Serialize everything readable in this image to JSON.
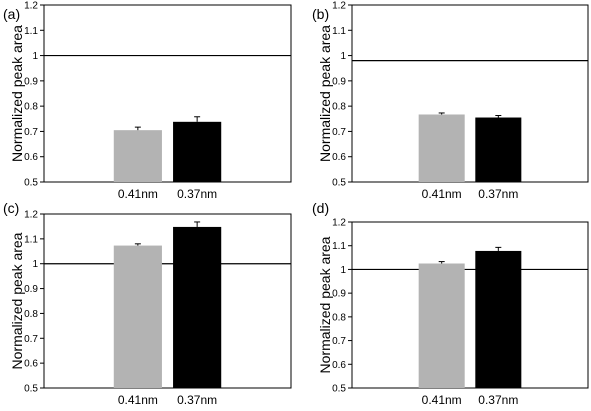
{
  "chart_data": [
    {
      "type": "bar",
      "panel_label": "(a)",
      "ylabel": "Normalized peak area",
      "ylim": [
        0.5,
        1.2
      ],
      "yticks": [
        "0.5",
        "0.6",
        "0.7",
        "0.8",
        "0.9",
        "1",
        "1.1",
        "1.2"
      ],
      "categories": [
        "0.41nm",
        "0.37nm"
      ],
      "values": [
        0.705,
        0.738
      ],
      "errors": [
        0.012,
        0.02
      ],
      "bar_colors": [
        "#b3b3b3",
        "#000000"
      ],
      "reference_line": 1.0
    },
    {
      "type": "bar",
      "panel_label": "(b)",
      "ylabel": "Normalized peak area",
      "ylim": [
        0.5,
        1.2
      ],
      "yticks": [
        "0.5",
        "0.6",
        "0.7",
        "0.8",
        "0.9",
        "1",
        "1.1",
        "1.2"
      ],
      "categories": [
        "0.41nm",
        "0.37nm"
      ],
      "values": [
        0.767,
        0.755
      ],
      "errors": [
        0.006,
        0.008
      ],
      "bar_colors": [
        "#b3b3b3",
        "#000000"
      ],
      "reference_line": 0.98
    },
    {
      "type": "bar",
      "panel_label": "(c)",
      "ylabel": "Normalized peak area",
      "ylim": [
        0.5,
        1.2
      ],
      "yticks": [
        "0.5",
        "0.6",
        "0.7",
        "0.8",
        "0.9",
        "1",
        "1.1",
        "1.2"
      ],
      "categories": [
        "0.41nm",
        "0.37nm"
      ],
      "values": [
        1.073,
        1.148
      ],
      "errors": [
        0.007,
        0.02
      ],
      "bar_colors": [
        "#b3b3b3",
        "#000000"
      ],
      "reference_line": 1.0
    },
    {
      "type": "bar",
      "panel_label": "(d)",
      "ylabel": "Normalized peak area",
      "ylim": [
        0.5,
        1.2
      ],
      "yticks": [
        "0.5",
        "0.6",
        "0.7",
        "0.8",
        "0.9",
        "1",
        "1.1",
        "1.2"
      ],
      "categories": [
        "0.41nm",
        "0.37nm"
      ],
      "values": [
        1.025,
        1.078
      ],
      "errors": [
        0.008,
        0.015
      ],
      "bar_colors": [
        "#b3b3b3",
        "#000000"
      ],
      "reference_line": 1.0
    }
  ]
}
